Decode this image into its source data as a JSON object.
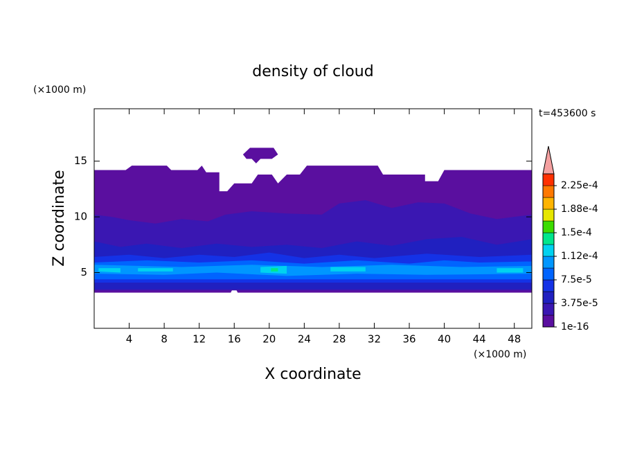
{
  "chart_data": {
    "type": "contour",
    "title": "density of cloud",
    "time_label": "t=453600 s",
    "xlabel": "X coordinate",
    "ylabel": "Z coordinate",
    "x_unit": "(×1000 m)",
    "y_unit": "(×1000 m)",
    "xlim": [
      0,
      50
    ],
    "ylim": [
      0,
      19.7
    ],
    "xticks": [
      4,
      8,
      12,
      16,
      20,
      24,
      28,
      32,
      36,
      40,
      44,
      48
    ],
    "yticks": [
      5,
      10,
      15
    ],
    "colors": [
      "#5a0f9f",
      "#3a17b2",
      "#2020c0",
      "#1432e6",
      "#0064ff",
      "#0096ff",
      "#00d2f0",
      "#00e68c",
      "#3cdc00",
      "#e6e600",
      "#ffb400",
      "#ff7800",
      "#ff3000"
    ],
    "extend_color": "#f4a0a0",
    "clim": [
      1e-16,
      0.00024375
    ],
    "cticks": [
      {
        "value": 1e-16,
        "label": "1e-16"
      },
      {
        "value": 3.75e-05,
        "label": "3.75e-5"
      },
      {
        "value": 7.5e-05,
        "label": "7.5e-5"
      },
      {
        "value": 0.0001125,
        "label": "1.12e-4"
      },
      {
        "value": 0.00015,
        "label": "1.5e-4"
      },
      {
        "value": 0.0001875,
        "label": "1.88e-4"
      },
      {
        "value": 0.000225,
        "label": "2.25e-4"
      }
    ],
    "regions": [
      {
        "level": 0,
        "points": [
          [
            0,
            3.2
          ],
          [
            15.6,
            3.2
          ],
          [
            16,
            3.8
          ],
          [
            16.4,
            3.2
          ],
          [
            50,
            3.2
          ],
          [
            50,
            14.2
          ],
          [
            40,
            14.2
          ],
          [
            39.3,
            13.2
          ],
          [
            37.8,
            13.2
          ],
          [
            37.8,
            13.8
          ],
          [
            33,
            13.8
          ],
          [
            32.4,
            14.6
          ],
          [
            24.3,
            14.6
          ],
          [
            23.5,
            13.8
          ],
          [
            22,
            13.8
          ],
          [
            21,
            13
          ],
          [
            20.3,
            13.8
          ],
          [
            18.7,
            13.8
          ],
          [
            18,
            13
          ],
          [
            16,
            13
          ],
          [
            15.2,
            12.3
          ],
          [
            14.3,
            12.3
          ],
          [
            14.3,
            14
          ],
          [
            12.8,
            14
          ],
          [
            12.3,
            14.6
          ],
          [
            11.8,
            14.2
          ],
          [
            8.8,
            14.2
          ],
          [
            8.3,
            14.6
          ],
          [
            4.3,
            14.6
          ],
          [
            3.6,
            14.2
          ],
          [
            0,
            14.2
          ]
        ]
      },
      {
        "level": 0,
        "points": [
          [
            17,
            15.6
          ],
          [
            17.8,
            16.2
          ],
          [
            20.5,
            16.2
          ],
          [
            21,
            15.6
          ],
          [
            20.3,
            15.2
          ],
          [
            19,
            15.2
          ],
          [
            18.5,
            14.8
          ],
          [
            18,
            15.2
          ],
          [
            17.4,
            15.2
          ]
        ]
      },
      {
        "level": 1,
        "points": [
          [
            0,
            3.4
          ],
          [
            50,
            3.4
          ],
          [
            50,
            10.2
          ],
          [
            46,
            9.8
          ],
          [
            43,
            10.3
          ],
          [
            40,
            11.2
          ],
          [
            37,
            11.3
          ],
          [
            34,
            10.8
          ],
          [
            31,
            11.5
          ],
          [
            28,
            11.2
          ],
          [
            26,
            10.2
          ],
          [
            22,
            10.3
          ],
          [
            18,
            10.5
          ],
          [
            15,
            10.2
          ],
          [
            13,
            9.6
          ],
          [
            10,
            9.8
          ],
          [
            7,
            9.4
          ],
          [
            4,
            9.7
          ],
          [
            2,
            10
          ],
          [
            0,
            10.2
          ]
        ]
      },
      {
        "level": 2,
        "points": [
          [
            0,
            3.5
          ],
          [
            50,
            3.5
          ],
          [
            50,
            8
          ],
          [
            46,
            7.5
          ],
          [
            42,
            8.2
          ],
          [
            38,
            8
          ],
          [
            34,
            7.4
          ],
          [
            30,
            7.8
          ],
          [
            26,
            7.2
          ],
          [
            22,
            7.5
          ],
          [
            18,
            7.3
          ],
          [
            14,
            7.6
          ],
          [
            10,
            7.2
          ],
          [
            6,
            7.6
          ],
          [
            3,
            7.3
          ],
          [
            0,
            7.8
          ]
        ]
      },
      {
        "level": 3,
        "points": [
          [
            0,
            4.1
          ],
          [
            50,
            4.1
          ],
          [
            50,
            6.6
          ],
          [
            44,
            6.4
          ],
          [
            38,
            6.7
          ],
          [
            32,
            6.3
          ],
          [
            28,
            6.6
          ],
          [
            24,
            6.3
          ],
          [
            20,
            6.8
          ],
          [
            16,
            6.4
          ],
          [
            12,
            6.6
          ],
          [
            8,
            6.3
          ],
          [
            4,
            6.6
          ],
          [
            0,
            6.4
          ]
        ]
      },
      {
        "level": 4,
        "points": [
          [
            0,
            4.4
          ],
          [
            50,
            4.4
          ],
          [
            50,
            6
          ],
          [
            44,
            5.9
          ],
          [
            40,
            6.1
          ],
          [
            36,
            5.8
          ],
          [
            30,
            6.1
          ],
          [
            24,
            5.8
          ],
          [
            18,
            6.1
          ],
          [
            12,
            5.9
          ],
          [
            6,
            6.1
          ],
          [
            0,
            5.9
          ]
        ]
      },
      {
        "level": 5,
        "points": [
          [
            0,
            4.9
          ],
          [
            8,
            4.8
          ],
          [
            14,
            5
          ],
          [
            22,
            4.7
          ],
          [
            30,
            4.9
          ],
          [
            38,
            4.8
          ],
          [
            50,
            4.9
          ],
          [
            50,
            5.6
          ],
          [
            42,
            5.5
          ],
          [
            34,
            5.7
          ],
          [
            26,
            5.5
          ],
          [
            18,
            5.7
          ],
          [
            10,
            5.5
          ],
          [
            0,
            5.7
          ]
        ]
      },
      {
        "level": 6,
        "points": [
          [
            0.5,
            5.1
          ],
          [
            3,
            5
          ],
          [
            3,
            5.4
          ],
          [
            0.5,
            5.4
          ]
        ]
      },
      {
        "level": 6,
        "points": [
          [
            5,
            5.1
          ],
          [
            9,
            5.1
          ],
          [
            9,
            5.4
          ],
          [
            5,
            5.4
          ]
        ]
      },
      {
        "level": 6,
        "points": [
          [
            19,
            5
          ],
          [
            22,
            4.9
          ],
          [
            22,
            5.6
          ],
          [
            19,
            5.5
          ]
        ]
      },
      {
        "level": 6,
        "points": [
          [
            27,
            5.1
          ],
          [
            31,
            5.1
          ],
          [
            31,
            5.5
          ],
          [
            27,
            5.5
          ]
        ]
      },
      {
        "level": 6,
        "points": [
          [
            46,
            5
          ],
          [
            49,
            5
          ],
          [
            49,
            5.4
          ],
          [
            46,
            5.4
          ]
        ]
      },
      {
        "level": 7,
        "points": [
          [
            20.2,
            5.1
          ],
          [
            21,
            5.1
          ],
          [
            21,
            5.4
          ],
          [
            20.2,
            5.4
          ]
        ]
      }
    ]
  }
}
